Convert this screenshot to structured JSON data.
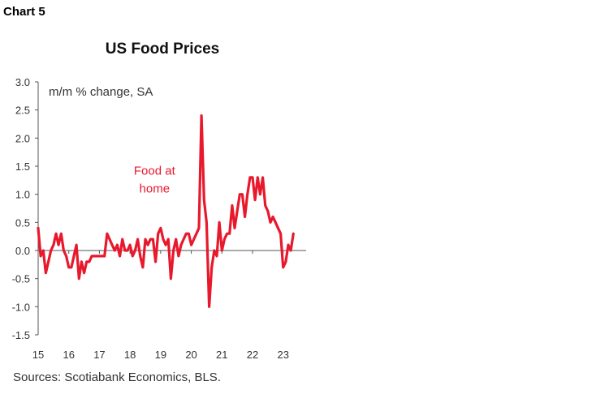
{
  "header": {
    "chart_label": "Chart 5"
  },
  "footer": {
    "source": "Sources: Scotiabank Economics, BLS."
  },
  "colors": {
    "series": "#e8192c",
    "axis": "#555555"
  },
  "chart_data": {
    "type": "line",
    "title": "US Food Prices",
    "ylabel": "m/m % change, SA",
    "xlabel": "",
    "ylim": [
      -1.5,
      3.0
    ],
    "yticks": [
      "3.0",
      "2.5",
      "2.0",
      "1.5",
      "1.0",
      "0.5",
      "0.0",
      "-0.5",
      "-1.0",
      "-1.5"
    ],
    "ytick_values": [
      3.0,
      2.5,
      2.0,
      1.5,
      1.0,
      0.5,
      0.0,
      -0.5,
      -1.0,
      -1.5
    ],
    "xlim": [
      2015,
      2023.75
    ],
    "xticks": [
      "15",
      "16",
      "17",
      "18",
      "19",
      "20",
      "21",
      "22",
      "23"
    ],
    "xtick_values": [
      2015,
      2016,
      2017,
      2018,
      2019,
      2020,
      2021,
      2022,
      2023
    ],
    "grid": false,
    "annotations": [
      {
        "lines": [
          "Food at",
          "home"
        ],
        "x": 2018.8,
        "y": 1.35
      }
    ],
    "series": [
      {
        "name": "Food at home",
        "start": "2015-01",
        "frequency": "monthly",
        "values": [
          0.4,
          -0.1,
          0.0,
          -0.4,
          -0.2,
          0.0,
          0.1,
          0.3,
          0.1,
          0.3,
          0.0,
          -0.1,
          -0.3,
          -0.3,
          -0.1,
          0.1,
          -0.5,
          -0.2,
          -0.4,
          -0.2,
          -0.2,
          -0.1,
          -0.1,
          -0.1,
          -0.1,
          -0.1,
          -0.1,
          0.3,
          0.2,
          0.1,
          0.0,
          0.1,
          -0.1,
          0.2,
          0.0,
          0.0,
          0.1,
          -0.1,
          0.0,
          0.2,
          -0.1,
          -0.3,
          0.2,
          0.1,
          0.2,
          0.2,
          -0.2,
          0.3,
          0.4,
          0.2,
          0.1,
          0.2,
          -0.5,
          0.0,
          0.2,
          -0.1,
          0.1,
          0.2,
          0.3,
          0.3,
          0.1,
          0.2,
          0.3,
          0.4,
          2.4,
          0.9,
          0.5,
          -1.0,
          -0.3,
          0.0,
          -0.1,
          0.5,
          0.0,
          0.2,
          0.3,
          0.3,
          0.8,
          0.4,
          0.7,
          1.0,
          1.0,
          0.6,
          1.0,
          1.3,
          1.3,
          0.9,
          1.3,
          1.0,
          1.3,
          0.8,
          0.7,
          0.5,
          0.6,
          0.5,
          0.4,
          0.3,
          -0.3,
          -0.2,
          0.1,
          0.0,
          0.3
        ]
      }
    ]
  }
}
